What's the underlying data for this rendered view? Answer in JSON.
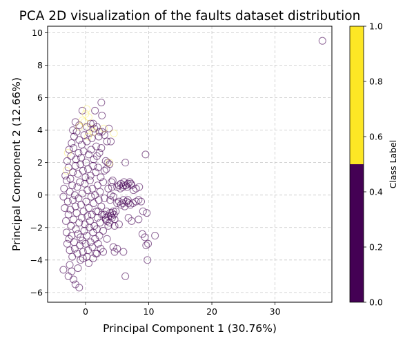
{
  "chart_data": {
    "type": "scatter",
    "title": "PCA 2D visualization of the faults dataset distribution",
    "xlabel": "Principal Component 1 (30.76%)",
    "ylabel": "Principal Component 2 (12.66%)",
    "xlim": [
      -6,
      39
    ],
    "ylim": [
      -6.6,
      10.4
    ],
    "xticks": [
      0,
      10,
      20,
      30
    ],
    "yticks": [
      -6,
      -4,
      -2,
      0,
      2,
      4,
      6,
      8,
      10
    ],
    "xtick_labels": [
      "0",
      "10",
      "20",
      "30"
    ],
    "ytick_labels": [
      "−6",
      "−4",
      "−2",
      "0",
      "2",
      "4",
      "6",
      "8",
      "10"
    ],
    "grid": true,
    "marker": "hollow-circle",
    "series": [
      {
        "class": 0,
        "color": "#440154",
        "points": [
          [
            -3.5,
            -0.1
          ],
          [
            -3.4,
            0.4
          ],
          [
            -3.3,
            -0.8
          ],
          [
            -3.2,
            1.2
          ],
          [
            -3.1,
            -1.6
          ],
          [
            -3.0,
            0.9
          ],
          [
            -3.0,
            -2.3
          ],
          [
            -2.9,
            2.1
          ],
          [
            -2.9,
            -3.0
          ],
          [
            -2.8,
            -0.4
          ],
          [
            -2.7,
            1.7
          ],
          [
            -2.7,
            -1.2
          ],
          [
            -2.6,
            2.8
          ],
          [
            -2.6,
            -2.7
          ],
          [
            -2.5,
            0.2
          ],
          [
            -2.5,
            -3.4
          ],
          [
            -2.4,
            1.0
          ],
          [
            -2.4,
            -0.9
          ],
          [
            -2.3,
            2.4
          ],
          [
            -2.3,
            -1.9
          ],
          [
            -2.2,
            3.2
          ],
          [
            -2.2,
            -2.5
          ],
          [
            -2.1,
            0.6
          ],
          [
            -2.1,
            -3.8
          ],
          [
            -2.0,
            1.4
          ],
          [
            -2.0,
            -0.3
          ],
          [
            -1.9,
            2.9
          ],
          [
            -1.9,
            -1.5
          ],
          [
            -1.8,
            3.6
          ],
          [
            -1.8,
            -2.9
          ],
          [
            -1.7,
            0.0
          ],
          [
            -1.7,
            -3.3
          ],
          [
            -1.6,
            1.8
          ],
          [
            -1.6,
            -0.7
          ],
          [
            -1.5,
            2.2
          ],
          [
            -1.5,
            -2.1
          ],
          [
            -1.4,
            3.9
          ],
          [
            -1.4,
            -1.1
          ],
          [
            -1.3,
            0.5
          ],
          [
            -1.3,
            -3.6
          ],
          [
            -1.2,
            1.3
          ],
          [
            -1.2,
            -2.4
          ],
          [
            -1.1,
            2.6
          ],
          [
            -1.1,
            -0.2
          ],
          [
            -1.0,
            3.4
          ],
          [
            -1.0,
            -1.7
          ],
          [
            -0.9,
            0.8
          ],
          [
            -0.9,
            -3.1
          ],
          [
            -0.8,
            1.9
          ],
          [
            -0.8,
            -2.6
          ],
          [
            -0.7,
            2.3
          ],
          [
            -0.7,
            -0.6
          ],
          [
            -0.6,
            3.1
          ],
          [
            -0.6,
            -1.4
          ],
          [
            -0.5,
            0.1
          ],
          [
            -0.5,
            -2.8
          ],
          [
            -0.4,
            1.5
          ],
          [
            -0.4,
            -3.5
          ],
          [
            -0.3,
            2.7
          ],
          [
            -0.3,
            -1.0
          ],
          [
            -0.2,
            3.7
          ],
          [
            -0.2,
            -2.2
          ],
          [
            -0.1,
            0.7
          ],
          [
            -0.1,
            -1.8
          ],
          [
            0.0,
            1.1
          ],
          [
            0.0,
            -3.0
          ],
          [
            0.1,
            2.0
          ],
          [
            0.1,
            -0.4
          ],
          [
            0.2,
            3.3
          ],
          [
            0.2,
            -2.5
          ],
          [
            0.3,
            0.3
          ],
          [
            0.3,
            -1.3
          ],
          [
            0.4,
            1.6
          ],
          [
            0.4,
            -3.4
          ],
          [
            0.5,
            2.5
          ],
          [
            0.5,
            -0.8
          ],
          [
            0.6,
            3.8
          ],
          [
            0.6,
            -2.0
          ],
          [
            0.7,
            0.9
          ],
          [
            0.7,
            -1.6
          ],
          [
            0.8,
            1.2
          ],
          [
            0.8,
            -2.9
          ],
          [
            0.9,
            2.8
          ],
          [
            0.9,
            -0.1
          ],
          [
            1.0,
            3.5
          ],
          [
            1.0,
            -1.2
          ],
          [
            1.1,
            0.4
          ],
          [
            1.1,
            -3.2
          ],
          [
            1.2,
            1.8
          ],
          [
            1.2,
            -2.3
          ],
          [
            1.3,
            2.2
          ],
          [
            1.3,
            -0.5
          ],
          [
            1.4,
            4.1
          ],
          [
            1.4,
            -1.9
          ],
          [
            1.5,
            0.0
          ],
          [
            1.5,
            -2.7
          ],
          [
            1.6,
            1.4
          ],
          [
            1.6,
            -3.6
          ],
          [
            1.7,
            3.0
          ],
          [
            1.7,
            -1.0
          ],
          [
            1.8,
            2.4
          ],
          [
            1.8,
            -2.1
          ],
          [
            1.9,
            0.6
          ],
          [
            1.9,
            -1.4
          ],
          [
            2.0,
            1.7
          ],
          [
            2.0,
            -3.0
          ],
          [
            2.1,
            3.6
          ],
          [
            2.1,
            -0.3
          ],
          [
            2.2,
            2.6
          ],
          [
            2.2,
            -2.5
          ],
          [
            2.3,
            0.2
          ],
          [
            2.3,
            -1.7
          ],
          [
            2.4,
            1.1
          ],
          [
            2.4,
            -3.3
          ],
          [
            2.5,
            2.9
          ],
          [
            2.5,
            -0.7
          ],
          [
            2.6,
            3.9
          ],
          [
            2.6,
            -1.2
          ],
          [
            2.8,
            0.8
          ],
          [
            2.8,
            -2.2
          ],
          [
            3.0,
            1.5
          ],
          [
            3.0,
            -0.2
          ],
          [
            3.2,
            2.1
          ],
          [
            3.2,
            -1.5
          ],
          [
            3.4,
            3.3
          ],
          [
            3.4,
            -2.7
          ],
          [
            3.6,
            0.4
          ],
          [
            3.8,
            1.9
          ],
          [
            -2.5,
            -4.3
          ],
          [
            -2.2,
            -4.7
          ],
          [
            -1.9,
            -5.2
          ],
          [
            -1.6,
            -5.5
          ],
          [
            -1.2,
            -4.5
          ],
          [
            -0.8,
            -4.0
          ],
          [
            -0.4,
            -3.9
          ],
          [
            0.2,
            -3.8
          ],
          [
            -3.5,
            -4.6
          ],
          [
            -2.7,
            -5.0
          ],
          [
            -1.0,
            -5.7
          ],
          [
            0.5,
            -4.2
          ],
          [
            1.2,
            -3.9
          ],
          [
            1.8,
            -3.6
          ],
          [
            2.8,
            -3.5
          ],
          [
            -2.0,
            4.0
          ],
          [
            -1.6,
            4.5
          ],
          [
            -1.0,
            4.3
          ],
          [
            0.2,
            4.2
          ],
          [
            0.8,
            4.4
          ],
          [
            1.2,
            4.4
          ],
          [
            1.8,
            4.2
          ],
          [
            2.6,
            4.9
          ],
          [
            2.5,
            5.7
          ],
          [
            -0.5,
            5.2
          ],
          [
            1.5,
            5.2
          ],
          [
            3.0,
            3.7
          ],
          [
            3.7,
            4.1
          ],
          [
            4.0,
            3.3
          ],
          [
            2.2,
            3.9
          ],
          [
            3.5,
            2.0
          ],
          [
            3.3,
            1.6
          ],
          [
            4.1,
            0.8
          ],
          [
            4.3,
            0.9
          ],
          [
            4.2,
            0.5
          ],
          [
            4.4,
            -0.1
          ],
          [
            3.9,
            -0.3
          ],
          [
            4.0,
            0.0
          ],
          [
            5.0,
            0.5
          ],
          [
            5.3,
            0.6
          ],
          [
            5.6,
            0.7
          ],
          [
            5.9,
            0.5
          ],
          [
            6.1,
            0.8
          ],
          [
            6.4,
            0.6
          ],
          [
            6.7,
            0.7
          ],
          [
            7.0,
            0.8
          ],
          [
            7.3,
            0.6
          ],
          [
            5.5,
            0.4
          ],
          [
            6.0,
            0.6
          ],
          [
            6.6,
            0.5
          ],
          [
            7.2,
            0.7
          ],
          [
            8.0,
            0.4
          ],
          [
            7.6,
            0.3
          ],
          [
            6.3,
            2.0
          ],
          [
            5.0,
            -0.5
          ],
          [
            5.3,
            -0.4
          ],
          [
            5.6,
            -0.6
          ],
          [
            5.9,
            -0.5
          ],
          [
            6.2,
            -0.7
          ],
          [
            6.5,
            -0.4
          ],
          [
            6.8,
            -0.5
          ],
          [
            7.1,
            -0.6
          ],
          [
            7.5,
            -0.5
          ],
          [
            8.0,
            -0.4
          ],
          [
            8.4,
            -0.3
          ],
          [
            8.8,
            -0.4
          ],
          [
            6.0,
            -0.3
          ],
          [
            6.7,
            -0.3
          ],
          [
            3.0,
            -1.2
          ],
          [
            3.3,
            -1.0
          ],
          [
            3.6,
            -1.3
          ],
          [
            3.9,
            -1.1
          ],
          [
            4.2,
            -1.4
          ],
          [
            4.5,
            -1.2
          ],
          [
            4.8,
            -1.0
          ],
          [
            3.4,
            -1.6
          ],
          [
            3.8,
            -1.7
          ],
          [
            4.2,
            -1.1
          ],
          [
            4.6,
            -1.5
          ],
          [
            3.2,
            -1.4
          ],
          [
            4.0,
            -1.3
          ],
          [
            4.4,
            -1.0
          ],
          [
            3.6,
            -1.9
          ],
          [
            6.8,
            -1.4
          ],
          [
            7.3,
            -1.6
          ],
          [
            8.4,
            -1.5
          ],
          [
            9.1,
            -1.0
          ],
          [
            9.7,
            -1.1
          ],
          [
            5.3,
            -1.8
          ],
          [
            4.6,
            -1.9
          ],
          [
            5.0,
            -3.3
          ],
          [
            4.6,
            -3.5
          ],
          [
            6.0,
            -3.5
          ],
          [
            4.4,
            -3.2
          ],
          [
            6.3,
            -5.0
          ],
          [
            9.0,
            -2.4
          ],
          [
            9.4,
            -2.6
          ],
          [
            9.6,
            -3.1
          ],
          [
            9.9,
            -3.0
          ],
          [
            11.0,
            -2.5
          ],
          [
            9.8,
            -4.0
          ],
          [
            9.5,
            2.5
          ],
          [
            37.5,
            9.5
          ],
          [
            8.5,
            0.5
          ],
          [
            2.0,
            -1.0
          ]
        ]
      },
      {
        "class": 1,
        "color": "#fde725",
        "points": [
          [
            -1.0,
            4.2
          ],
          [
            -0.5,
            4.6
          ],
          [
            0.0,
            5.0
          ],
          [
            0.5,
            4.8
          ],
          [
            0.9,
            4.1
          ],
          [
            1.3,
            3.9
          ],
          [
            0.4,
            3.6
          ],
          [
            -0.2,
            4.5
          ],
          [
            4.5,
            3.8
          ],
          [
            3.8,
            2.0
          ],
          [
            -3.0,
            1.5
          ],
          [
            -2.8,
            2.6
          ],
          [
            2.9,
            4.1
          ],
          [
            0.2,
            5.3
          ]
        ]
      }
    ],
    "colorbar": {
      "label": "Class Label",
      "min": 0.0,
      "max": 1.0,
      "ticks": [
        0.0,
        0.2,
        0.4,
        0.6,
        0.8,
        1.0
      ],
      "tick_labels": [
        "0.0",
        "0.2",
        "0.4",
        "0.6",
        "0.8",
        "1.0"
      ],
      "segments": [
        {
          "from": 0.0,
          "to": 0.5,
          "color": "#440154"
        },
        {
          "from": 0.5,
          "to": 1.0,
          "color": "#fde725"
        }
      ]
    }
  }
}
